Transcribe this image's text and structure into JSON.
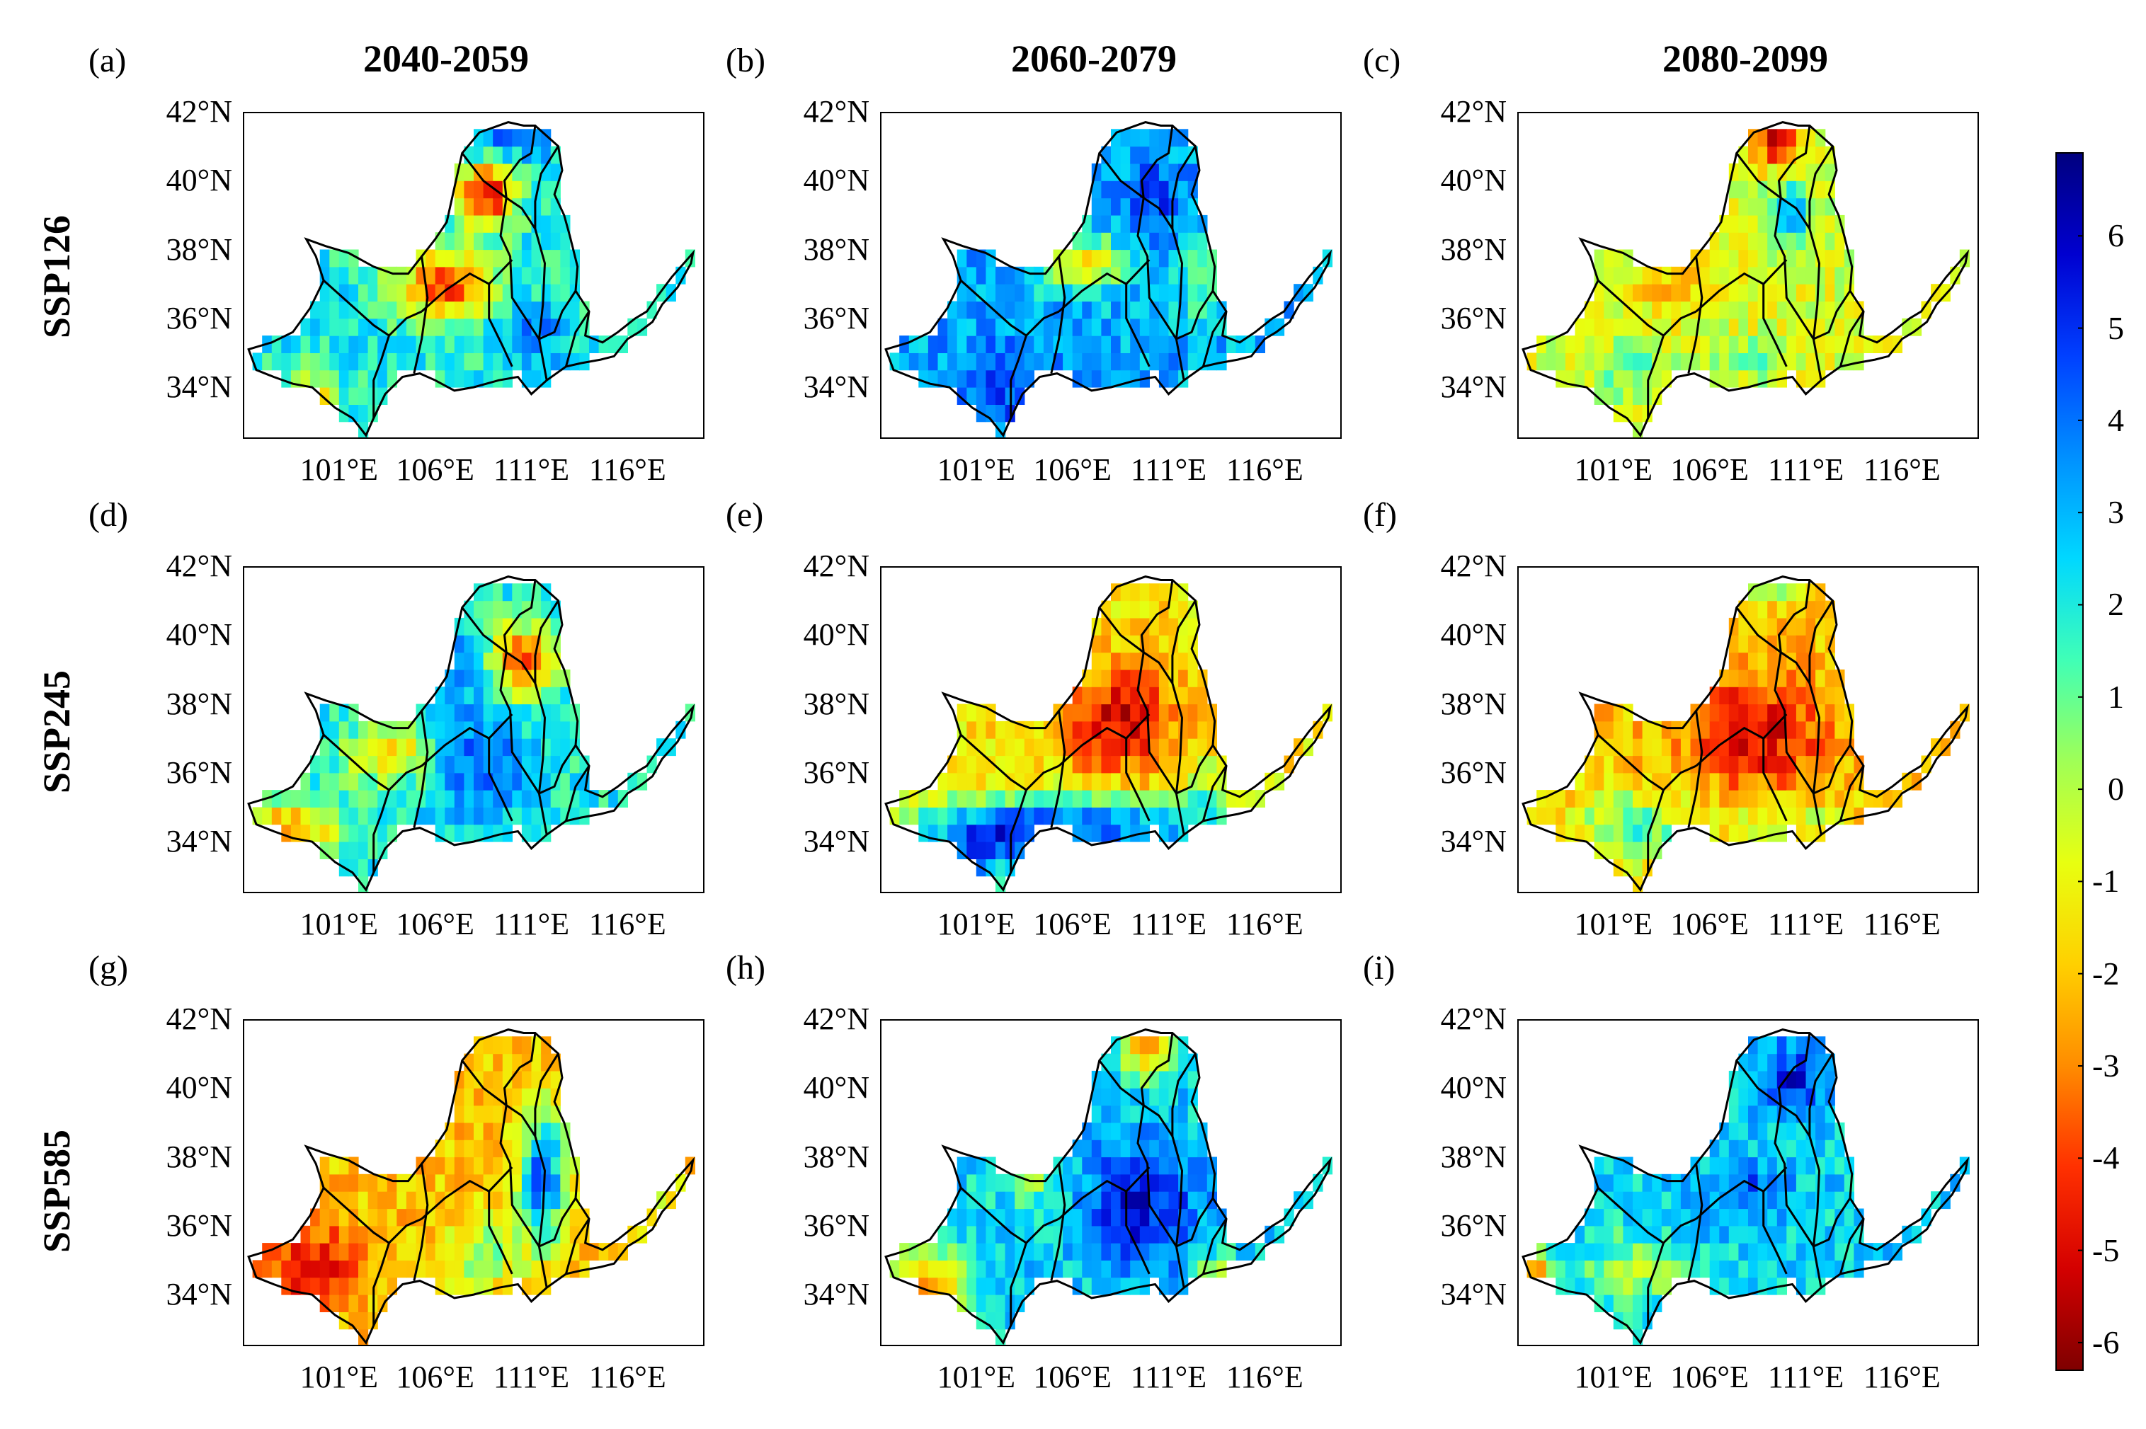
{
  "columns": [
    "2040-2059",
    "2060-2079",
    "2080-2099"
  ],
  "rows": [
    "SSP126",
    "SSP245",
    "SSP585"
  ],
  "panels": [
    {
      "label": "(a)",
      "scenario": "SSP126",
      "period": "2040-2059",
      "pattern": "mixed-north-dry"
    },
    {
      "label": "(b)",
      "scenario": "SSP126",
      "period": "2060-2079",
      "pattern": "wet"
    },
    {
      "label": "(c)",
      "scenario": "SSP126",
      "period": "2080-2099",
      "pattern": "mild-dry"
    },
    {
      "label": "(d)",
      "scenario": "SSP245",
      "period": "2040-2059",
      "pattern": "mixed-east-dry"
    },
    {
      "label": "(e)",
      "scenario": "SSP245",
      "period": "2060-2079",
      "pattern": "dry-center-wet-south"
    },
    {
      "label": "(f)",
      "scenario": "SSP245",
      "period": "2080-2099",
      "pattern": "dry"
    },
    {
      "label": "(g)",
      "scenario": "SSP585",
      "period": "2040-2059",
      "pattern": "dry-west-wet-east"
    },
    {
      "label": "(h)",
      "scenario": "SSP585",
      "period": "2060-2079",
      "pattern": "very-wet-center"
    },
    {
      "label": "(i)",
      "scenario": "SSP585",
      "period": "2080-2099",
      "pattern": "wet"
    }
  ],
  "axes": {
    "lat_labels": [
      "42°N",
      "40°N",
      "38°N",
      "36°N",
      "34°N"
    ],
    "lat_values": [
      42,
      40,
      38,
      36,
      34
    ],
    "lon_labels": [
      "101°E",
      "106°E",
      "111°E",
      "116°E"
    ],
    "lon_values": [
      101,
      106,
      111,
      116
    ],
    "lon_range": [
      96,
      120
    ],
    "lat_range": [
      32.5,
      42
    ]
  },
  "colorbar": {
    "ticks": [
      "6",
      "5",
      "4",
      "3",
      "2",
      "1",
      "0",
      "-1",
      "-2",
      "-3",
      "-4",
      "-5",
      "-6"
    ],
    "tick_values": [
      6,
      5,
      4,
      3,
      2,
      1,
      0,
      -1,
      -2,
      -3,
      -4,
      -5,
      -6
    ],
    "range": [
      -6.3,
      6.9
    ],
    "colors": [
      "#7f0000",
      "#d40000",
      "#ff3000",
      "#ff8c00",
      "#ffd000",
      "#e8ff10",
      "#a0ff56",
      "#40ffb6",
      "#00d8ff",
      "#0090ff",
      "#0040ff",
      "#0000d0",
      "#00007f"
    ]
  }
}
